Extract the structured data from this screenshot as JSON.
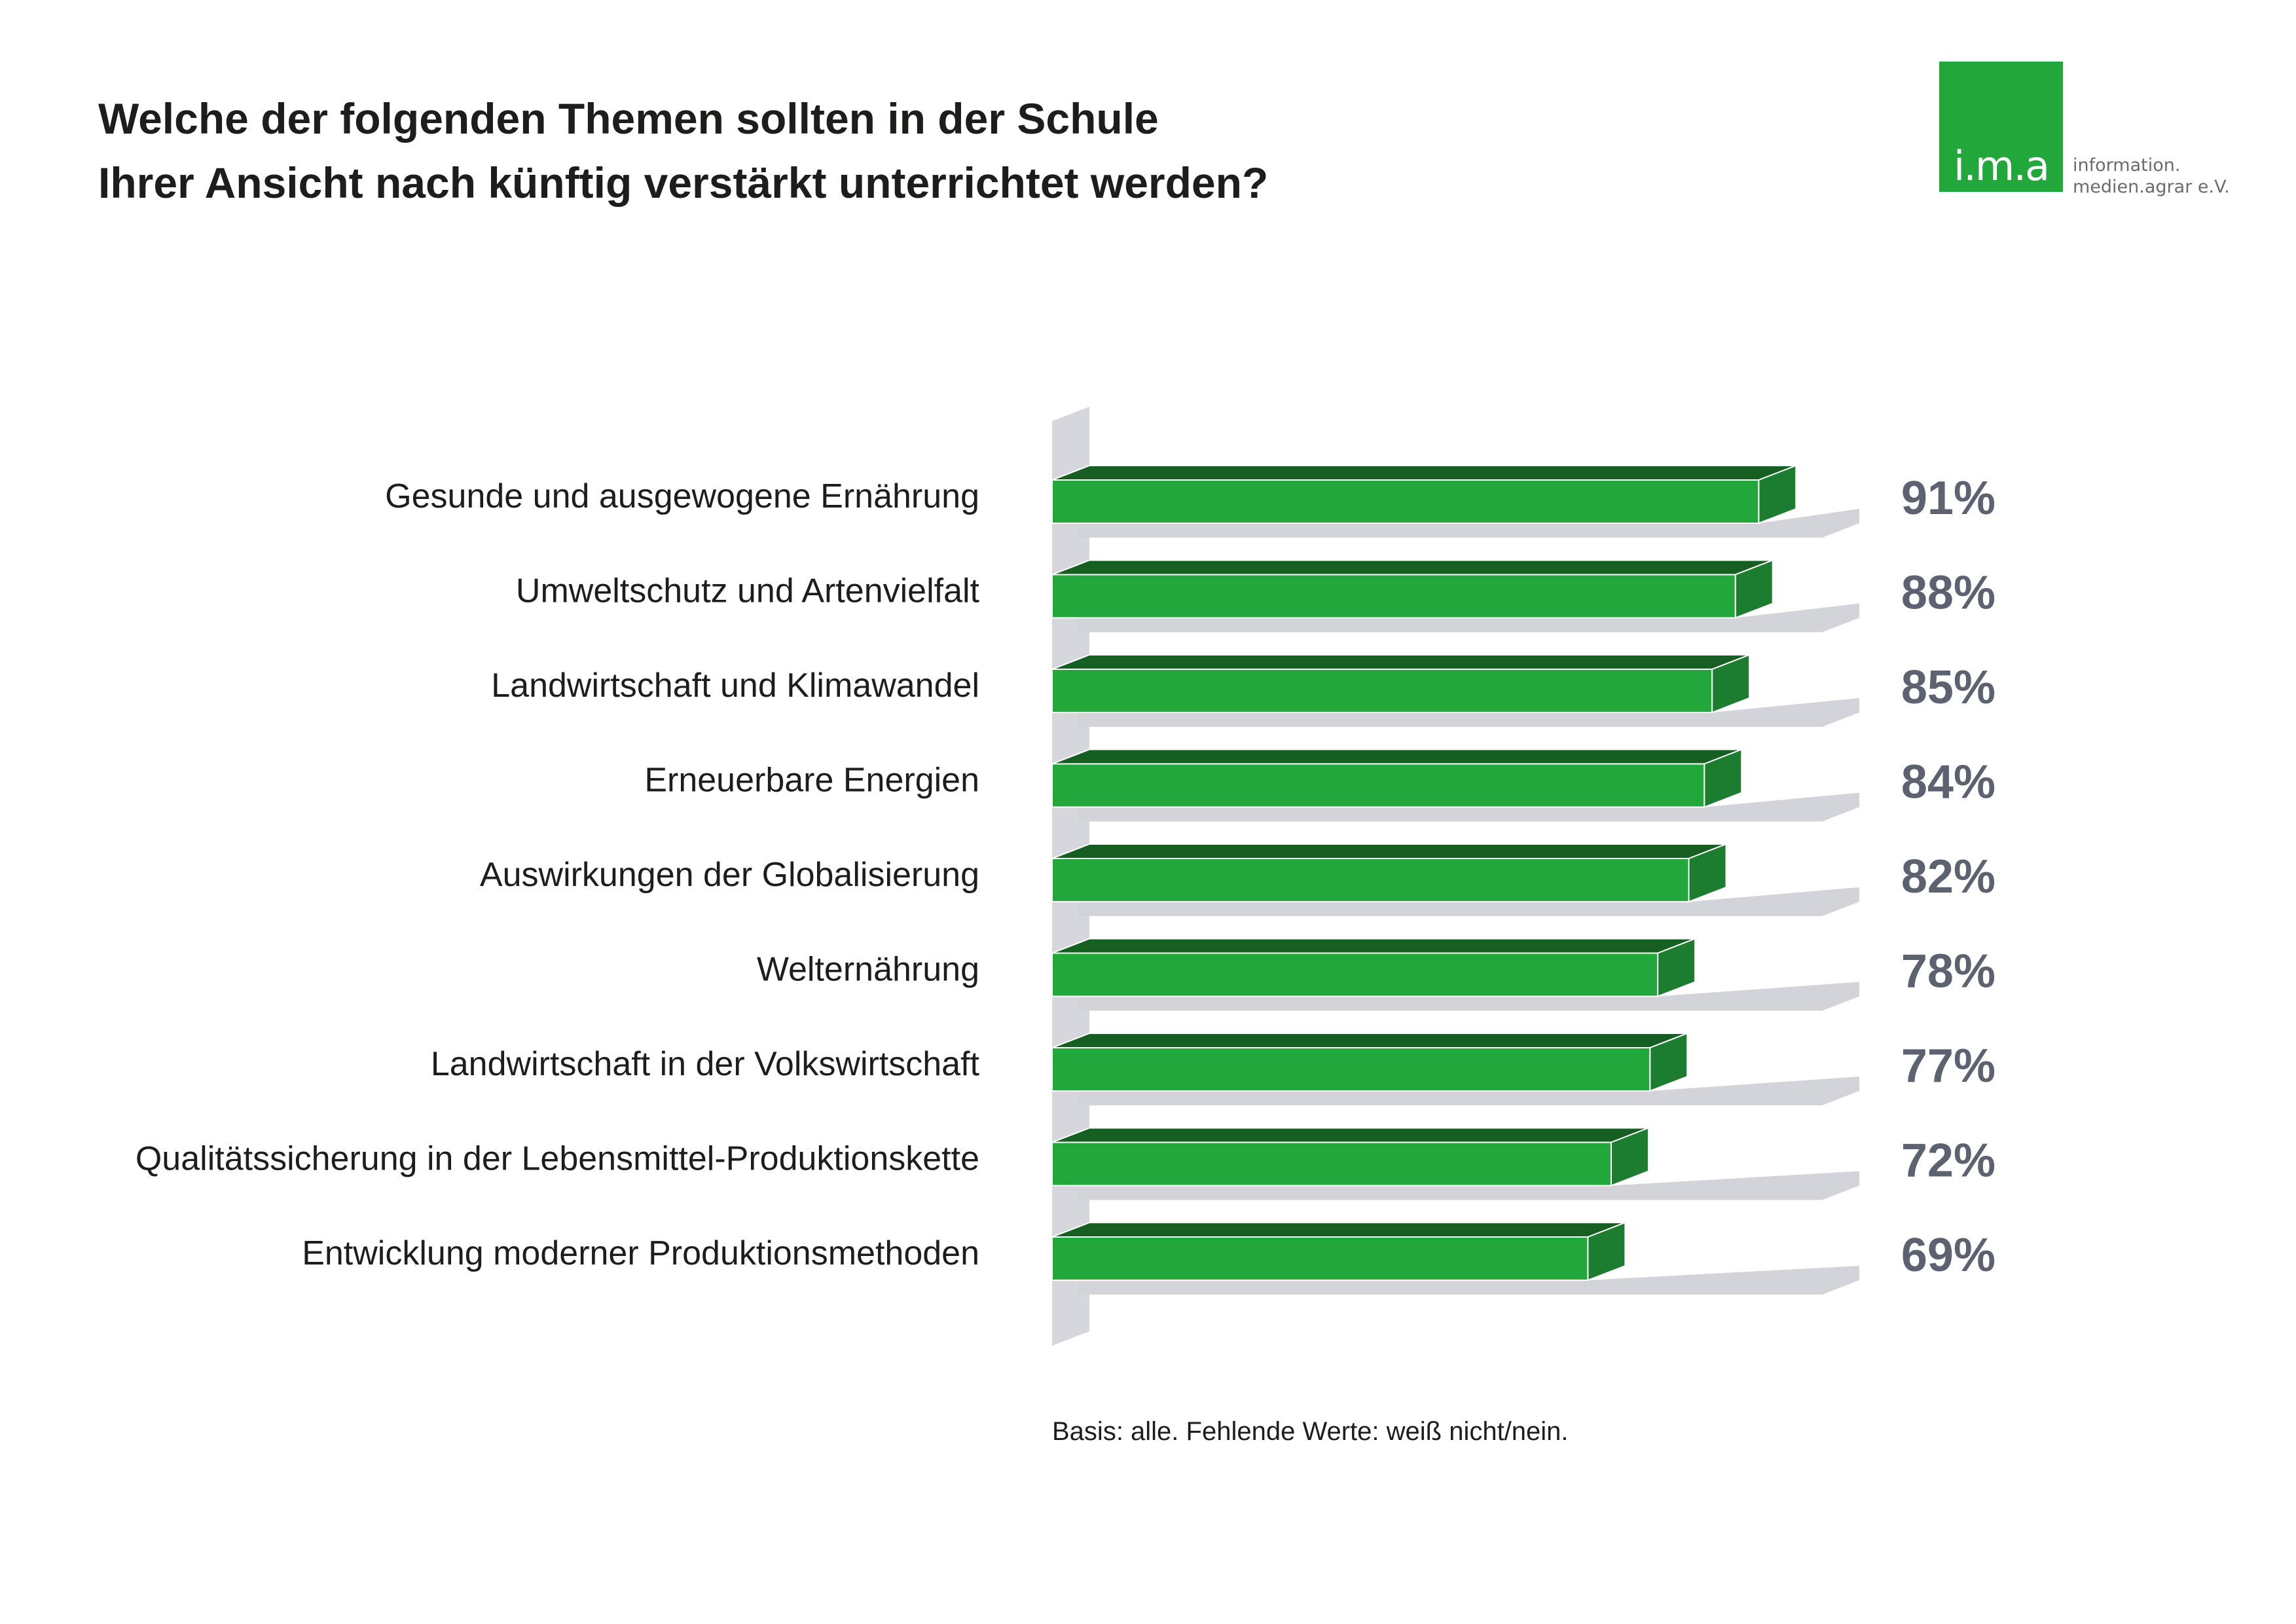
{
  "header": {
    "title_line1": "Welche der folgenden Themen sollten in der Schule",
    "title_line2": "Ihrer Ansicht nach künftig verstärkt unterrichtet werden?"
  },
  "logo": {
    "mark": "i.m.a",
    "tagline_line1": "information.",
    "tagline_line2": "medien.agrar e.V.",
    "color": "#22a73a"
  },
  "footnote": "Basis: alle. Fehlende Werte: weiß nicht/nein.",
  "colors": {
    "bar_front": "#22a73a",
    "bar_top": "#155f22",
    "bar_side": "#1c7d2e",
    "shadow": "#d3d4d9",
    "value_text": "#5d6270"
  },
  "chart_data": {
    "type": "bar",
    "orientation": "horizontal",
    "categories": [
      "Gesunde und ausgewogene Ernährung",
      "Umweltschutz und Artenvielfalt",
      "Landwirtschaft und Klimawandel",
      "Erneuerbare Energien",
      "Auswirkungen der Globalisierung",
      "Welternährung",
      "Landwirtschaft in der Volkswirtschaft",
      "Qualitätssicherung in der Lebensmittel-Produktionskette",
      "Entwicklung moderner Produktionsmethoden"
    ],
    "values": [
      91,
      88,
      85,
      84,
      82,
      78,
      77,
      72,
      69
    ],
    "value_labels": [
      "91%",
      "88%",
      "85%",
      "84%",
      "82%",
      "78%",
      "77%",
      "72%",
      "69%"
    ],
    "unit": "%",
    "xlim": [
      0,
      100
    ],
    "grid": false,
    "legend": "none"
  }
}
